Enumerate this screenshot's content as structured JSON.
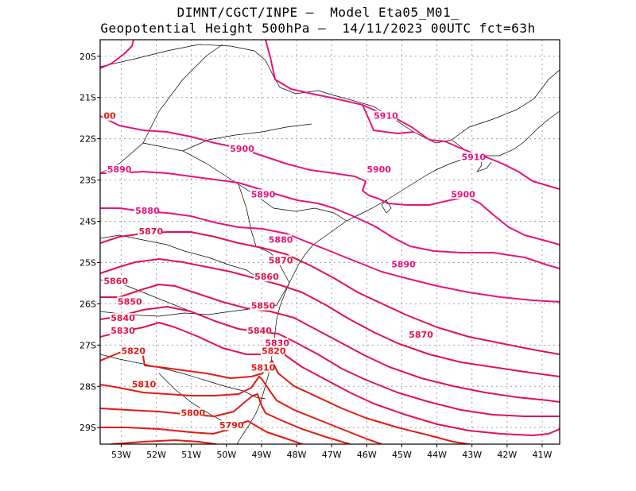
{
  "titles": {
    "line1": "DIMNT/CGCT/INPE —  Model Eta05_M01_",
    "line2": "Geopotential Height 500hPa —  14/11/2023 00UTC fct=63h"
  },
  "map": {
    "lon_range": [
      -53.6,
      -40.5
    ],
    "lat_range": [
      -29.4,
      -19.6
    ],
    "lon_ticks": [
      "53W",
      "52W",
      "51W",
      "50W",
      "49W",
      "48W",
      "47W",
      "46W",
      "45W",
      "44W",
      "43W",
      "42W",
      "41W"
    ],
    "lat_ticks": [
      "20S",
      "21S",
      "22S",
      "23S",
      "24S",
      "25S",
      "26S",
      "27S",
      "28S",
      "29S"
    ]
  },
  "colors": {
    "high": "#e8127c",
    "mid": "#e2124a",
    "low": "#e21a12",
    "grid": "#a0a0a0",
    "border": "#000000"
  },
  "contour_labels": [
    {
      "text": "5910",
      "lon": -45.8,
      "lat": -21.5
    },
    {
      "text": "5910",
      "lon": -43.3,
      "lat": -22.5
    },
    {
      "text": "5900",
      "lon": -49.9,
      "lat": -22.3
    },
    {
      "text": "5900",
      "lon": -46.0,
      "lat": -22.8
    },
    {
      "text": "5900",
      "lon": -43.6,
      "lat": -23.4
    },
    {
      "text": "00",
      "lon": -53.5,
      "lat": -21.5
    },
    {
      "text": "5890",
      "lon": -53.4,
      "lat": -22.8
    },
    {
      "text": "5890",
      "lon": -49.3,
      "lat": -23.4
    },
    {
      "text": "5890",
      "lon": -45.3,
      "lat": -25.1
    },
    {
      "text": "5880",
      "lon": -52.6,
      "lat": -23.8
    },
    {
      "text": "5880",
      "lon": -48.8,
      "lat": -24.5
    },
    {
      "text": "5870",
      "lon": -52.5,
      "lat": -24.3
    },
    {
      "text": "5870",
      "lon": -48.8,
      "lat": -25.0
    },
    {
      "text": "5870",
      "lon": -44.8,
      "lat": -26.8
    },
    {
      "text": "5860",
      "lon": -53.5,
      "lat": -25.5
    },
    {
      "text": "5860",
      "lon": -49.2,
      "lat": -25.4
    },
    {
      "text": "5850",
      "lon": -53.1,
      "lat": -26.0
    },
    {
      "text": "5850",
      "lon": -49.3,
      "lat": -26.1
    },
    {
      "text": "5840",
      "lon": -53.3,
      "lat": -26.4
    },
    {
      "text": "5840",
      "lon": -49.4,
      "lat": -26.7
    },
    {
      "text": "5830",
      "lon": -53.3,
      "lat": -26.7
    },
    {
      "text": "5830",
      "lon": -48.9,
      "lat": -27.0
    },
    {
      "text": "5820",
      "lon": -53.0,
      "lat": -27.2
    },
    {
      "text": "5820",
      "lon": -49.0,
      "lat": -27.2
    },
    {
      "text": "5810",
      "lon": -49.3,
      "lat": -27.6
    },
    {
      "text": "5810",
      "lon": -52.7,
      "lat": -28.0
    },
    {
      "text": "5800",
      "lon": -51.3,
      "lat": -28.7
    },
    {
      "text": "5790",
      "lon": -50.2,
      "lat": -29.0
    }
  ]
}
